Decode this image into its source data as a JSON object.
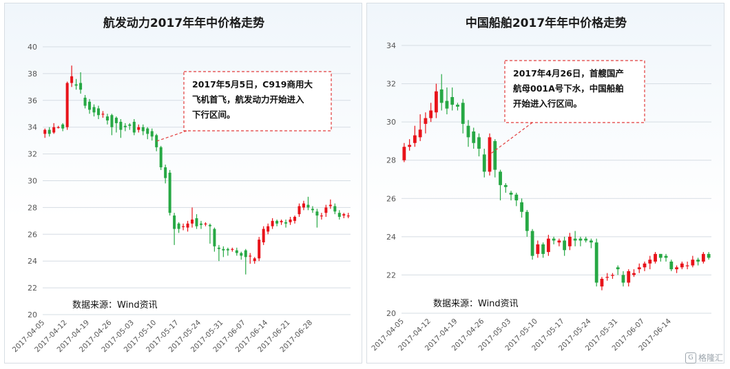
{
  "colors": {
    "up": "#e8131a",
    "down": "#27a844",
    "grid": "#d5dce3",
    "note_border": "#e23b3b"
  },
  "chart_data": [
    {
      "type": "candlestick",
      "title": "航发动力2017年年中价格走势",
      "ylim": [
        20,
        40
      ],
      "yticks": [
        20,
        22,
        24,
        26,
        28,
        30,
        32,
        34,
        36,
        38,
        40
      ],
      "xtick_labels": [
        "2017-04-05",
        "2017-04-12",
        "2017-04-19",
        "2017-04-26",
        "2017-05-03",
        "2017-05-10",
        "2017-05-17",
        "2017-05-24",
        "2017-05-31",
        "2017-06-07",
        "2017-06-14",
        "2017-06-21",
        "2017-06-28"
      ],
      "source": "数据来源：Wind资讯",
      "annotation": {
        "text": [
          "2017年5月5日，C919商用大",
          "飞机首飞，航发动力开始进入",
          "下行区间。"
        ],
        "point_index": 25
      },
      "candles": [
        [
          33.5,
          33.8,
          33.2,
          33.9
        ],
        [
          33.8,
          33.5,
          33.3,
          34.0
        ],
        [
          33.6,
          34.0,
          33.5,
          34.3
        ],
        [
          34.0,
          34.0,
          33.9,
          34.1
        ],
        [
          34.2,
          33.9,
          33.7,
          34.3
        ],
        [
          34.0,
          37.3,
          33.8,
          37.4
        ],
        [
          37.3,
          37.8,
          37.0,
          38.6
        ],
        [
          37.2,
          37.1,
          36.8,
          37.6
        ],
        [
          37.3,
          36.8,
          36.5,
          38.1
        ],
        [
          36.2,
          35.6,
          35.4,
          36.4
        ],
        [
          35.9,
          35.3,
          35.0,
          36.1
        ],
        [
          35.5,
          35.1,
          34.8,
          35.7
        ],
        [
          35.4,
          34.9,
          34.6,
          35.6
        ],
        [
          35.0,
          35.0,
          34.7,
          35.2
        ],
        [
          34.8,
          34.5,
          34.2,
          35.0
        ],
        [
          34.9,
          34.0,
          33.4,
          35.0
        ],
        [
          34.7,
          34.3,
          33.6,
          34.8
        ],
        [
          34.4,
          33.8,
          33.2,
          34.6
        ],
        [
          34.1,
          34.0,
          33.7,
          34.3
        ],
        [
          34.2,
          34.1,
          33.8,
          34.3
        ],
        [
          34.4,
          33.6,
          33.4,
          34.6
        ],
        [
          33.8,
          34.0,
          33.6,
          34.2
        ],
        [
          34.0,
          33.7,
          33.4,
          34.2
        ],
        [
          33.9,
          33.5,
          33.1,
          34.0
        ],
        [
          33.7,
          33.3,
          33.0,
          33.9
        ],
        [
          33.4,
          32.5,
          32.2,
          33.5
        ],
        [
          32.5,
          31.0,
          30.8,
          32.6
        ],
        [
          31.0,
          30.2,
          29.8,
          31.2
        ],
        [
          30.6,
          27.6,
          27.4,
          30.8
        ],
        [
          27.4,
          26.4,
          25.2,
          27.6
        ],
        [
          26.8,
          26.4,
          26.1,
          26.9
        ],
        [
          26.6,
          26.6,
          26.3,
          26.8
        ],
        [
          26.5,
          26.8,
          26.2,
          27.0
        ],
        [
          26.8,
          27.1,
          26.5,
          28.0
        ],
        [
          27.2,
          26.6,
          26.4,
          27.5
        ],
        [
          26.8,
          26.7,
          26.4,
          27.0
        ],
        [
          26.8,
          26.8,
          26.6,
          26.9
        ],
        [
          26.7,
          26.6,
          25.3,
          26.8
        ],
        [
          26.4,
          25.1,
          24.7,
          26.5
        ],
        [
          25.0,
          24.9,
          24.0,
          25.2
        ],
        [
          24.9,
          24.8,
          24.3,
          25.1
        ],
        [
          24.9,
          24.8,
          24.4,
          25.0
        ],
        [
          24.9,
          24.9,
          24.7,
          25.0
        ],
        [
          24.8,
          24.6,
          24.4,
          25.0
        ],
        [
          24.6,
          24.4,
          24.1,
          24.7
        ],
        [
          24.8,
          24.3,
          23.0,
          24.9
        ],
        [
          24.4,
          24.4,
          23.8,
          24.6
        ],
        [
          24.0,
          24.2,
          23.8,
          24.3
        ],
        [
          24.2,
          25.6,
          24.0,
          25.8
        ],
        [
          25.4,
          26.4,
          25.2,
          26.6
        ],
        [
          26.2,
          26.6,
          26.0,
          26.8
        ],
        [
          26.6,
          27.0,
          26.4,
          27.2
        ],
        [
          27.0,
          26.8,
          26.6,
          27.1
        ],
        [
          26.9,
          27.0,
          26.7,
          27.1
        ],
        [
          26.9,
          26.8,
          26.5,
          27.1
        ],
        [
          26.9,
          27.1,
          26.7,
          27.3
        ],
        [
          27.0,
          27.3,
          26.8,
          27.4
        ],
        [
          27.5,
          28.1,
          27.3,
          28.3
        ],
        [
          28.0,
          28.3,
          27.8,
          28.5
        ],
        [
          28.2,
          28.0,
          27.8,
          28.8
        ],
        [
          27.9,
          27.8,
          27.6,
          28.1
        ],
        [
          27.7,
          27.4,
          26.5,
          27.9
        ],
        [
          27.4,
          27.4,
          27.1,
          27.6
        ],
        [
          27.6,
          28.0,
          27.3,
          28.2
        ],
        [
          28.1,
          28.2,
          27.9,
          28.6
        ],
        [
          28.1,
          27.7,
          27.5,
          28.3
        ],
        [
          27.6,
          27.3,
          27.1,
          27.8
        ],
        [
          27.4,
          27.5,
          27.2,
          27.6
        ],
        [
          27.4,
          27.4,
          27.2,
          27.6
        ]
      ]
    },
    {
      "type": "candlestick",
      "title": "中国船舶2017年年中价格走势",
      "ylim": [
        20,
        34
      ],
      "yticks": [
        20,
        22,
        24,
        26,
        28,
        30,
        32,
        34
      ],
      "xtick_labels": [
        "2017-04-05",
        "2017-04-12",
        "2017-04-19",
        "2017-04-26",
        "2017-05-03",
        "2017-05-10",
        "2017-05-17",
        "2017-05-24",
        "2017-05-31",
        "2017-06-07",
        "2017-06-14"
      ],
      "source": "数据来源：Wind资讯",
      "annotation": {
        "text": [
          "2017年4月26日，首艘国产",
          "航母001A号下水，中国船舶",
          "开始进入行区间。"
        ],
        "point_index": 16
      },
      "candles": [
        [
          28.0,
          28.7,
          27.9,
          28.9
        ],
        [
          28.7,
          28.8,
          28.5,
          29.1
        ],
        [
          28.9,
          29.3,
          28.7,
          29.8
        ],
        [
          29.2,
          29.6,
          29.0,
          30.4
        ],
        [
          29.9,
          30.2,
          29.4,
          30.5
        ],
        [
          30.2,
          30.6,
          30.0,
          31.0
        ],
        [
          30.5,
          31.6,
          30.2,
          32.0
        ],
        [
          31.7,
          31.0,
          30.6,
          32.5
        ],
        [
          31.1,
          30.7,
          30.4,
          31.8
        ],
        [
          31.3,
          30.9,
          30.6,
          31.8
        ],
        [
          30.9,
          30.8,
          30.6,
          31.0
        ],
        [
          31.0,
          29.9,
          29.4,
          31.2
        ],
        [
          29.8,
          29.2,
          28.7,
          30.1
        ],
        [
          29.5,
          28.9,
          28.6,
          29.7
        ],
        [
          29.2,
          28.6,
          28.2,
          29.4
        ],
        [
          28.3,
          27.4,
          27.1,
          28.6
        ],
        [
          27.4,
          29.2,
          27.2,
          29.4
        ],
        [
          29.0,
          27.5,
          27.1,
          29.1
        ],
        [
          27.4,
          26.7,
          25.9,
          27.5
        ],
        [
          26.7,
          26.6,
          26.3,
          26.8
        ],
        [
          26.3,
          26.2,
          25.9,
          26.4
        ],
        [
          26.2,
          25.9,
          25.6,
          26.3
        ],
        [
          25.8,
          25.3,
          25.0,
          26.0
        ],
        [
          25.3,
          24.3,
          24.0,
          25.4
        ],
        [
          24.3,
          23.0,
          22.8,
          24.4
        ],
        [
          23.1,
          23.6,
          22.9,
          23.8
        ],
        [
          23.6,
          23.1,
          22.9,
          23.7
        ],
        [
          23.2,
          23.9,
          23.0,
          24.1
        ],
        [
          23.9,
          23.8,
          23.6,
          24.0
        ],
        [
          23.7,
          23.8,
          23.5,
          23.9
        ],
        [
          23.8,
          23.3,
          23.0,
          24.0
        ],
        [
          23.5,
          24.0,
          23.3,
          24.2
        ],
        [
          23.9,
          23.8,
          23.5,
          24.3
        ],
        [
          23.9,
          23.8,
          23.5,
          24.0
        ],
        [
          23.9,
          23.8,
          23.7,
          24.0
        ],
        [
          23.8,
          23.7,
          23.4,
          23.9
        ],
        [
          23.7,
          21.6,
          21.4,
          23.9
        ],
        [
          21.4,
          21.8,
          21.2,
          21.9
        ],
        [
          21.9,
          21.9,
          21.7,
          22.1
        ],
        [
          22.0,
          22.0,
          21.8,
          22.1
        ],
        [
          22.4,
          22.3,
          22.0,
          22.5
        ],
        [
          22.0,
          21.6,
          21.4,
          22.2
        ],
        [
          21.6,
          22.2,
          21.4,
          22.3
        ],
        [
          22.0,
          22.1,
          21.9,
          22.3
        ],
        [
          22.3,
          22.4,
          22.1,
          22.6
        ],
        [
          22.4,
          22.6,
          22.2,
          22.7
        ],
        [
          22.6,
          22.8,
          22.3,
          23.0
        ],
        [
          22.7,
          23.1,
          22.6,
          23.2
        ],
        [
          23.1,
          22.9,
          22.7,
          23.1
        ],
        [
          23.0,
          22.9,
          22.7,
          23.1
        ],
        [
          22.7,
          22.3,
          22.2,
          22.8
        ],
        [
          22.3,
          22.4,
          22.1,
          22.5
        ],
        [
          22.4,
          22.6,
          22.3,
          22.7
        ],
        [
          22.5,
          22.5,
          22.3,
          22.7
        ],
        [
          22.5,
          22.8,
          22.4,
          23.0
        ],
        [
          22.8,
          22.7,
          22.5,
          22.9
        ],
        [
          22.7,
          23.1,
          22.6,
          23.2
        ],
        [
          23.1,
          22.9,
          22.8,
          23.2
        ]
      ]
    }
  ],
  "watermark": "格隆汇"
}
